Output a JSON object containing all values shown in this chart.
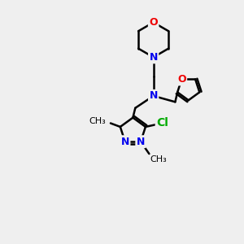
{
  "background_color": "#efefef",
  "bond_color": "#000000",
  "bond_width": 1.8,
  "N_color": "#0000ee",
  "O_color": "#ee0000",
  "Cl_color": "#00aa00",
  "font_size": 9,
  "fig_size": [
    3.0,
    3.0
  ],
  "dpi": 100,
  "xlim": [
    0,
    10
  ],
  "ylim": [
    0,
    10
  ]
}
